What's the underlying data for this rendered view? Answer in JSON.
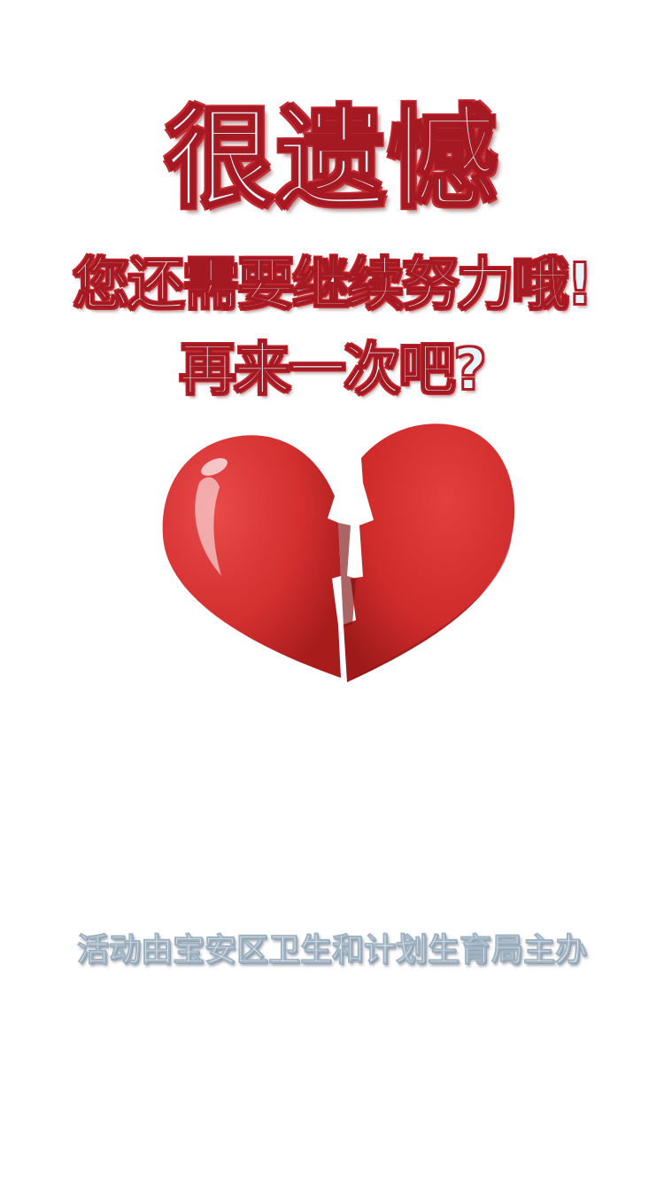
{
  "headline": {
    "title": "很遗憾",
    "line1": "您还需要继续努力哦!",
    "line2": "再来一次吧?"
  },
  "illustration": {
    "icon": "broken-heart-icon",
    "color": "#d32f2f"
  },
  "footer": {
    "organizer_text": "活动由宝安区卫生和计划生育局主办"
  },
  "colors": {
    "text_fill": "#e4f3f8",
    "text_outline": "#c42a31",
    "background": "#ffffff"
  }
}
